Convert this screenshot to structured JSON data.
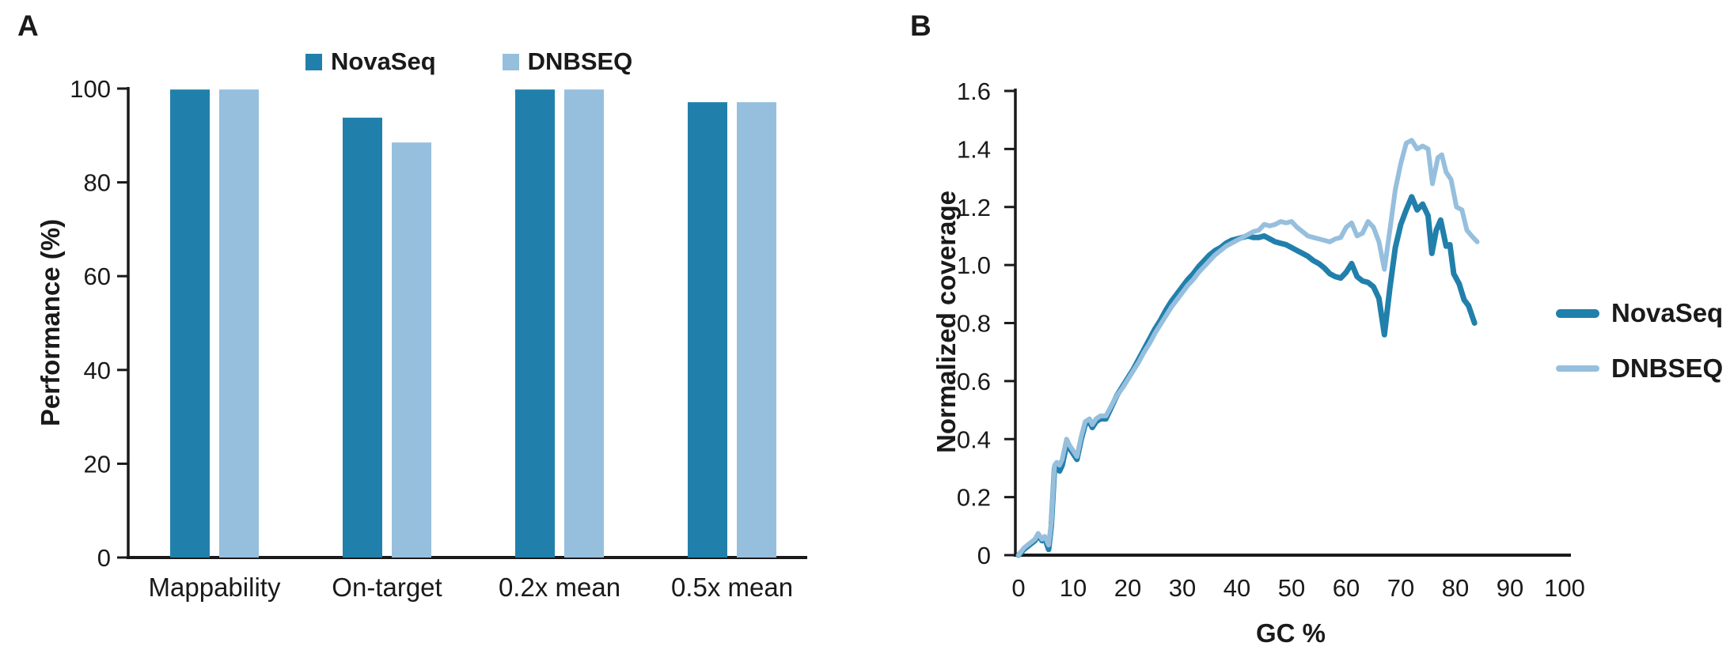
{
  "figure": {
    "colors": {
      "novaseq": "#2180ab",
      "dnbseq": "#96bfdd",
      "axis": "#1a1a1a",
      "text": "#1a1a1a",
      "background": "#ffffff"
    }
  },
  "panelA": {
    "label": "A",
    "legend": [
      {
        "name": "NovaSeq",
        "color_key": "novaseq"
      },
      {
        "name": "DNBSEQ",
        "color_key": "dnbseq"
      }
    ],
    "chart_data": {
      "type": "bar",
      "categories": [
        "Mappability",
        "On-target",
        "0.2x mean",
        "0.5x mean"
      ],
      "series": [
        {
          "name": "NovaSeq",
          "color_key": "novaseq",
          "values": [
            99.8,
            93.8,
            99.8,
            97.1
          ]
        },
        {
          "name": "DNBSEQ",
          "color_key": "dnbseq",
          "values": [
            99.8,
            88.5,
            99.8,
            97.1
          ]
        }
      ],
      "title": "",
      "xlabel": "",
      "ylabel": "Performance (%)",
      "ylim": [
        0,
        100
      ],
      "yticks": [
        0,
        20,
        40,
        60,
        80,
        100
      ],
      "ytick_labels": [
        "0",
        "20",
        "40",
        "60",
        "80",
        "100"
      ],
      "grid": false,
      "legend_position": "top"
    }
  },
  "panelB": {
    "label": "B",
    "legend": [
      {
        "name": "NovaSeq",
        "color_key": "novaseq"
      },
      {
        "name": "DNBSEQ",
        "color_key": "dnbseq"
      }
    ],
    "chart_data": {
      "type": "line",
      "title": "",
      "xlabel": "GC %",
      "ylabel": "Normalized coverage",
      "xlim": [
        0,
        100
      ],
      "ylim": [
        0,
        1.6
      ],
      "xticks": [
        0,
        10,
        20,
        30,
        40,
        50,
        60,
        70,
        80,
        90,
        100
      ],
      "xtick_labels": [
        "0",
        "10",
        "20",
        "30",
        "40",
        "50",
        "60",
        "70",
        "80",
        "90",
        "100"
      ],
      "yticks": [
        0,
        0.2,
        0.4,
        0.6,
        0.8,
        1.0,
        1.2,
        1.4,
        1.6
      ],
      "ytick_labels": [
        "0",
        "0.2",
        "0.4",
        "0.6",
        "0.8",
        "1.0",
        "1.2",
        "1.4",
        "1.6"
      ],
      "grid": false,
      "legend_position": "right",
      "series": [
        {
          "name": "NovaSeq",
          "color_key": "novaseq",
          "stroke_width": 7,
          "points": [
            [
              0,
              0
            ],
            [
              1,
              0.02
            ],
            [
              2,
              0.035
            ],
            [
              3,
              0.05
            ],
            [
              3.6,
              0.07
            ],
            [
              4.3,
              0.05
            ],
            [
              4.8,
              0.06
            ],
            [
              5.5,
              0.02
            ],
            [
              6,
              0.1
            ],
            [
              6.6,
              0.3
            ],
            [
              7,
              0.31
            ],
            [
              7.5,
              0.29
            ],
            [
              8,
              0.31
            ],
            [
              8.8,
              0.38
            ],
            [
              9.3,
              0.37
            ],
            [
              10,
              0.35
            ],
            [
              10.7,
              0.33
            ],
            [
              11.5,
              0.4
            ],
            [
              12.2,
              0.45
            ],
            [
              13,
              0.46
            ],
            [
              13.5,
              0.44
            ],
            [
              14.2,
              0.46
            ],
            [
              15,
              0.47
            ],
            [
              16,
              0.47
            ],
            [
              17,
              0.51
            ],
            [
              18,
              0.55
            ],
            [
              19,
              0.58
            ],
            [
              20,
              0.61
            ],
            [
              21,
              0.64
            ],
            [
              22,
              0.675
            ],
            [
              23,
              0.71
            ],
            [
              24,
              0.745
            ],
            [
              25,
              0.78
            ],
            [
              26,
              0.81
            ],
            [
              27,
              0.845
            ],
            [
              28,
              0.875
            ],
            [
              29,
              0.9
            ],
            [
              30,
              0.925
            ],
            [
              31,
              0.95
            ],
            [
              32,
              0.97
            ],
            [
              33,
              0.995
            ],
            [
              34,
              1.015
            ],
            [
              35,
              1.035
            ],
            [
              36,
              1.05
            ],
            [
              37,
              1.06
            ],
            [
              38,
              1.075
            ],
            [
              39,
              1.085
            ],
            [
              40,
              1.09
            ],
            [
              41,
              1.095
            ],
            [
              42,
              1.1
            ],
            [
              43,
              1.095
            ],
            [
              44,
              1.095
            ],
            [
              45,
              1.1
            ],
            [
              46,
              1.09
            ],
            [
              47,
              1.08
            ],
            [
              48,
              1.075
            ],
            [
              49,
              1.07
            ],
            [
              50,
              1.06
            ],
            [
              51,
              1.05
            ],
            [
              52,
              1.04
            ],
            [
              53,
              1.03
            ],
            [
              54,
              1.015
            ],
            [
              55,
              1.005
            ],
            [
              56,
              0.99
            ],
            [
              57,
              0.97
            ],
            [
              58,
              0.96
            ],
            [
              59,
              0.955
            ],
            [
              60,
              0.975
            ],
            [
              61,
              1.005
            ],
            [
              62,
              0.96
            ],
            [
              63,
              0.945
            ],
            [
              64,
              0.94
            ],
            [
              65,
              0.925
            ],
            [
              66,
              0.885
            ],
            [
              67,
              0.76
            ],
            [
              68,
              0.92
            ],
            [
              69,
              1.06
            ],
            [
              70,
              1.14
            ],
            [
              71,
              1.19
            ],
            [
              72,
              1.235
            ],
            [
              73,
              1.19
            ],
            [
              74,
              1.21
            ],
            [
              75,
              1.17
            ],
            [
              75.7,
              1.04
            ],
            [
              76.5,
              1.12
            ],
            [
              77.3,
              1.155
            ],
            [
              78.3,
              1.065
            ],
            [
              79,
              1.07
            ],
            [
              79.7,
              0.97
            ],
            [
              80.7,
              0.935
            ],
            [
              81.6,
              0.88
            ],
            [
              82.4,
              0.86
            ],
            [
              83.5,
              0.8
            ]
          ]
        },
        {
          "name": "DNBSEQ",
          "color_key": "dnbseq",
          "stroke_width": 6,
          "points": [
            [
              0,
              0
            ],
            [
              1,
              0.025
            ],
            [
              2,
              0.04
            ],
            [
              3,
              0.055
            ],
            [
              3.6,
              0.075
            ],
            [
              4.3,
              0.055
            ],
            [
              4.8,
              0.065
            ],
            [
              5.5,
              0.035
            ],
            [
              6,
              0.11
            ],
            [
              6.6,
              0.31
            ],
            [
              7,
              0.32
            ],
            [
              7.5,
              0.31
            ],
            [
              8,
              0.33
            ],
            [
              8.8,
              0.4
            ],
            [
              9.3,
              0.38
            ],
            [
              10,
              0.36
            ],
            [
              10.7,
              0.34
            ],
            [
              11.5,
              0.41
            ],
            [
              12.2,
              0.46
            ],
            [
              13,
              0.47
            ],
            [
              13.5,
              0.45
            ],
            [
              14.2,
              0.47
            ],
            [
              15,
              0.48
            ],
            [
              16,
              0.48
            ],
            [
              17,
              0.515
            ],
            [
              18,
              0.55
            ],
            [
              19,
              0.575
            ],
            [
              20,
              0.605
            ],
            [
              21,
              0.635
            ],
            [
              22,
              0.665
            ],
            [
              23,
              0.7
            ],
            [
              24,
              0.73
            ],
            [
              25,
              0.765
            ],
            [
              26,
              0.795
            ],
            [
              27,
              0.825
            ],
            [
              28,
              0.855
            ],
            [
              29,
              0.88
            ],
            [
              30,
              0.905
            ],
            [
              31,
              0.93
            ],
            [
              32,
              0.95
            ],
            [
              33,
              0.975
            ],
            [
              34,
              0.995
            ],
            [
              35,
              1.015
            ],
            [
              36,
              1.035
            ],
            [
              37,
              1.05
            ],
            [
              38,
              1.065
            ],
            [
              39,
              1.075
            ],
            [
              40,
              1.085
            ],
            [
              41,
              1.095
            ],
            [
              42,
              1.105
            ],
            [
              43,
              1.115
            ],
            [
              44,
              1.12
            ],
            [
              45,
              1.14
            ],
            [
              46,
              1.135
            ],
            [
              47,
              1.14
            ],
            [
              48,
              1.15
            ],
            [
              49,
              1.145
            ],
            [
              50,
              1.15
            ],
            [
              51,
              1.13
            ],
            [
              52,
              1.115
            ],
            [
              53,
              1.1
            ],
            [
              54,
              1.095
            ],
            [
              55,
              1.09
            ],
            [
              56,
              1.085
            ],
            [
              57,
              1.08
            ],
            [
              58,
              1.09
            ],
            [
              59,
              1.095
            ],
            [
              60,
              1.13
            ],
            [
              61,
              1.145
            ],
            [
              62,
              1.1
            ],
            [
              63,
              1.11
            ],
            [
              64,
              1.15
            ],
            [
              65,
              1.13
            ],
            [
              66,
              1.08
            ],
            [
              67,
              0.985
            ],
            [
              68,
              1.12
            ],
            [
              69,
              1.26
            ],
            [
              70,
              1.35
            ],
            [
              71,
              1.42
            ],
            [
              72,
              1.43
            ],
            [
              73,
              1.4
            ],
            [
              74,
              1.41
            ],
            [
              75,
              1.4
            ],
            [
              75.8,
              1.28
            ],
            [
              76.8,
              1.37
            ],
            [
              77.5,
              1.38
            ],
            [
              78.3,
              1.32
            ],
            [
              79.2,
              1.295
            ],
            [
              80.2,
              1.2
            ],
            [
              81.2,
              1.19
            ],
            [
              82.1,
              1.12
            ],
            [
              83,
              1.1
            ],
            [
              84,
              1.08
            ]
          ]
        }
      ]
    }
  }
}
